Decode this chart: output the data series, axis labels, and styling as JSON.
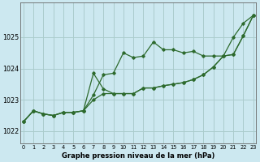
{
  "title": "Graphe pression niveau de la mer (hPa)",
  "background_color": "#cce8f0",
  "grid_color": "#aacccc",
  "line_color": "#2d6a2d",
  "y_ticks": [
    1022,
    1023,
    1024,
    1025
  ],
  "ylim": [
    1021.6,
    1026.1
  ],
  "xlim": [
    -0.3,
    23.3
  ],
  "series": [
    [
      1022.3,
      1022.65,
      1022.55,
      1022.5,
      1022.6,
      1022.6,
      1022.65,
      1023.15,
      1023.8,
      1023.85,
      1024.5,
      1024.35,
      1024.4,
      1024.85,
      1024.6,
      1024.6,
      1024.5,
      1024.55,
      1024.4,
      1024.4,
      1024.4,
      1025.0,
      1025.45,
      1025.7
    ],
    [
      1022.3,
      1022.65,
      1022.55,
      1022.5,
      1022.6,
      1022.6,
      1022.65,
      1023.85,
      1023.35,
      1023.2,
      1023.2,
      1023.2,
      1023.38,
      1023.38,
      1023.45,
      1023.5,
      1023.55,
      1023.65,
      1023.8,
      1024.05,
      1024.4,
      1024.45,
      1025.05,
      1025.7
    ],
    [
      1022.3,
      1022.65,
      1022.55,
      1022.5,
      1022.6,
      1022.6,
      1022.65,
      1023.0,
      1023.2,
      1023.2,
      1023.2,
      1023.2,
      1023.38,
      1023.38,
      1023.45,
      1023.5,
      1023.55,
      1023.65,
      1023.8,
      1024.05,
      1024.4,
      1024.45,
      1025.05,
      1025.7
    ]
  ],
  "xlabel_fontsize": 6.0,
  "xtick_fontsize": 4.8,
  "ytick_fontsize": 5.8
}
